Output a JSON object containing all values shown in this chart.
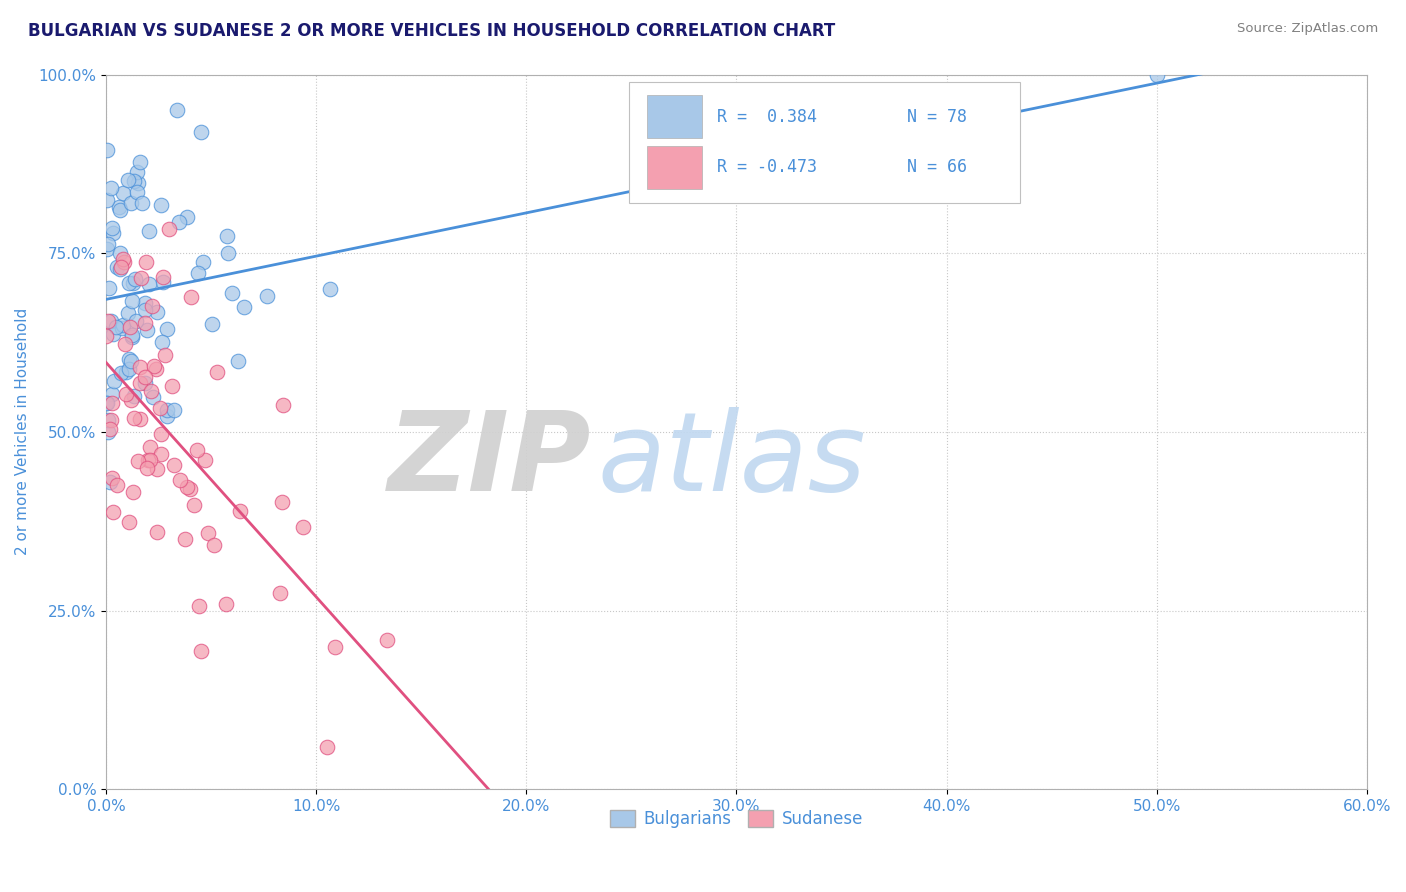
{
  "title": "BULGARIAN VS SUDANESE 2 OR MORE VEHICLES IN HOUSEHOLD CORRELATION CHART",
  "source_text": "Source: ZipAtlas.com",
  "xlim": [
    0.0,
    60.0
  ],
  "ylim": [
    0.0,
    100.0
  ],
  "ylabel": "2 or more Vehicles in Household",
  "bulgarian_color": "#a8c8e8",
  "sudanese_color": "#f4a0b0",
  "bulgarian_line_color": "#4a90d9",
  "sudanese_line_color": "#e05080",
  "legend_r_bulgarian": "R =  0.384",
  "legend_n_bulgarian": "N = 78",
  "legend_r_sudanese": "R = -0.473",
  "legend_n_sudanese": "N = 66",
  "legend_label_bulgarian": "Bulgarians",
  "legend_label_sudanese": "Sudanese",
  "title_color": "#1a1a6e",
  "axis_color": "#4a90d9",
  "tick_color": "#4a90d9",
  "source_color": "#808080",
  "grid_color": "#c8c8c8",
  "bg_color": "#ffffff",
  "zip_watermark_color": "#d0d0d0",
  "atlas_watermark_color": "#c0d8f0",
  "bulgarian_seed": 12,
  "sudanese_seed": 7,
  "bulgarian_n": 78,
  "sudanese_n": 66
}
